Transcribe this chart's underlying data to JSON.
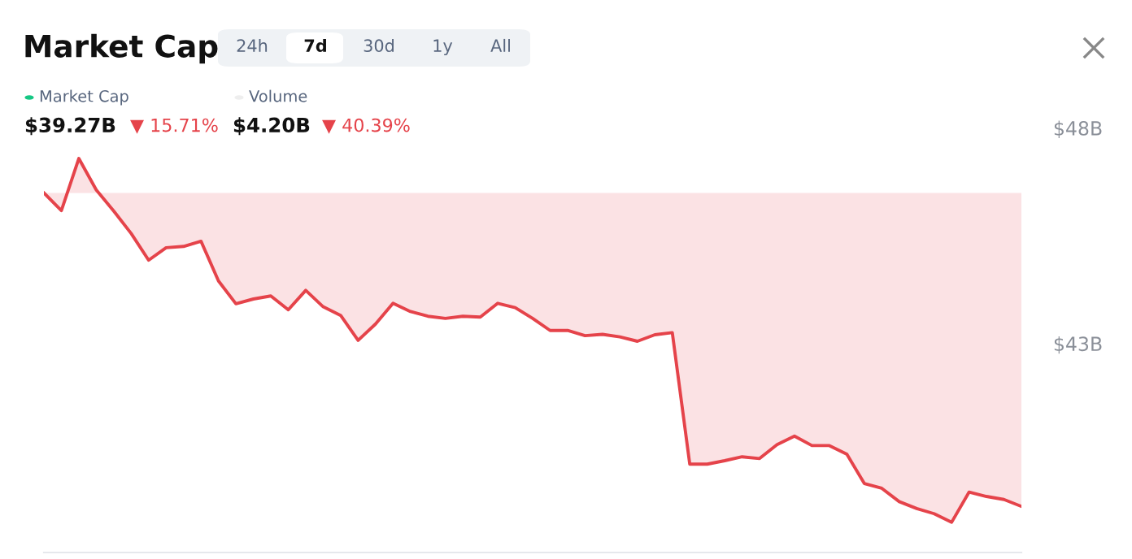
{
  "chart_data": {
    "type": "line",
    "title": "Market Cap",
    "annotations": [
      "24h",
      "7d",
      "30d",
      "1y",
      "All",
      "Market Cap",
      "$39.27B",
      "▼ 15.71%",
      "Volume",
      "$4.20B",
      "▼ 40.39%"
    ],
    "categories": [
      null,
      null,
      null,
      null,
      null,
      null,
      null,
      null,
      null,
      null,
      null,
      null,
      null,
      null,
      null,
      null,
      null,
      null,
      null,
      null,
      null,
      null,
      null,
      null,
      null,
      null,
      null,
      null,
      null,
      null,
      null,
      null,
      null,
      null,
      null,
      null,
      null,
      null,
      null,
      null,
      null,
      null,
      null,
      null,
      null,
      null,
      null,
      null,
      null,
      null,
      null,
      null,
      null,
      null,
      null,
      null,
      null
    ],
    "series": [
      {
        "color": "#e5434a",
        "values": [
          46.54,
          46.13,
          47.34,
          46.61,
          46.12,
          45.6,
          44.98,
          45.27,
          45.3,
          45.42,
          44.5,
          43.97,
          44.08,
          44.15,
          43.83,
          44.28,
          43.9,
          43.7,
          43.12,
          43.5,
          43.98,
          43.79,
          43.68,
          43.63,
          43.68,
          43.66,
          43.98,
          43.88,
          43.63,
          43.35,
          43.35,
          43.23,
          43.26,
          43.2,
          43.1,
          43.25,
          43.3,
          40.25,
          40.25,
          40.33,
          40.42,
          40.38,
          40.7,
          40.9,
          40.68,
          40.68,
          40.48,
          39.8,
          39.69,
          39.38,
          39.22,
          39.1,
          38.9,
          39.6,
          39.5,
          39.43,
          39.27
        ]
      }
    ],
    "ylim": [
      38.2,
      48
    ],
    "yticks": [
      {
        "value": 43,
        "label": "$43B"
      },
      {
        "value": 48,
        "label": "$48B"
      }
    ],
    "tick_labels": "y",
    "grid": false
  }
}
